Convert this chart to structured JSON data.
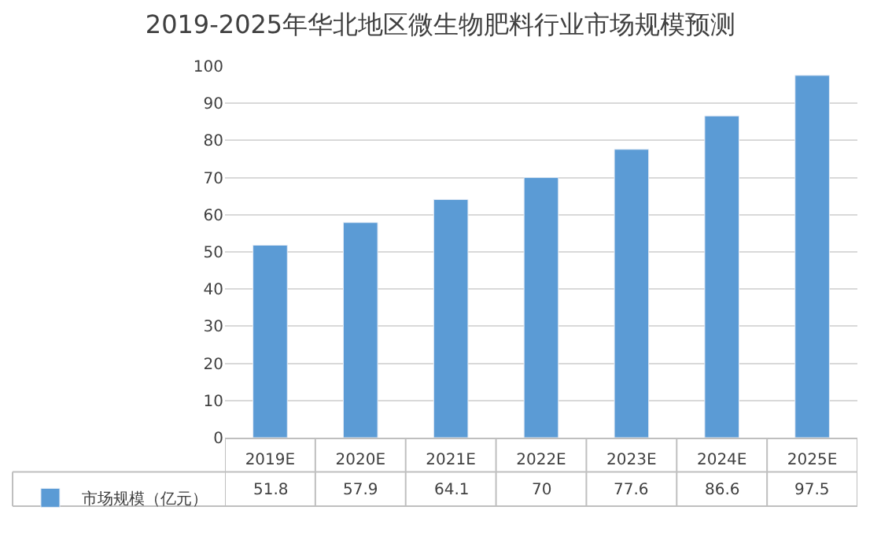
{
  "chart_data": {
    "type": "bar",
    "title": "2019-2025年华北地区微生物肥料行业市场规模预测",
    "categories": [
      "2019E",
      "2020E",
      "2021E",
      "2022E",
      "2023E",
      "2024E",
      "2025E"
    ],
    "series": [
      {
        "name": "市场规模（亿元）",
        "color": "#5b9bd5",
        "values": [
          51.8,
          57.9,
          64.1,
          70,
          77.6,
          86.6,
          97.5
        ]
      }
    ],
    "ylim": [
      0,
      100
    ],
    "yticks": [
      0,
      10,
      20,
      30,
      40,
      50,
      60,
      70,
      80,
      90,
      100
    ],
    "grid": "y",
    "legend": "bottom left",
    "data_labels": true
  }
}
